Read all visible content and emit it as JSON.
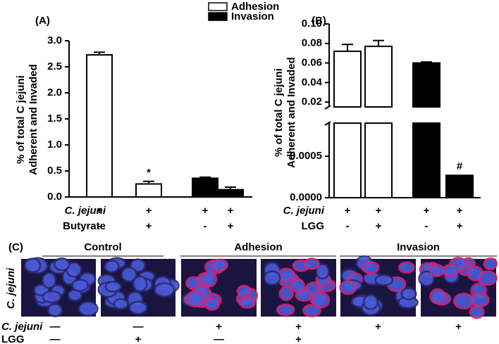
{
  "chart_data": [
    {
      "type": "bar",
      "panel_label": "(A)",
      "ylabel": [
        "% of total C jejuni",
        "Adherent and Invaded"
      ],
      "series": [
        {
          "name": "Adhesion",
          "color": "#ffffff",
          "values": [
            2.73,
            0.25,
            null,
            null
          ],
          "errors": [
            0.05,
            0.05,
            null,
            null
          ]
        },
        {
          "name": "Invasion",
          "color": "#000000",
          "values": [
            null,
            null,
            0.36,
            0.14
          ],
          "errors": [
            null,
            null,
            0.02,
            0.05
          ]
        }
      ],
      "ylim": [
        0,
        3
      ],
      "yticks": [
        {
          "value": 0,
          "label": "0.0"
        },
        0.5,
        {
          "value": 1,
          "label": "1.0"
        },
        1.5,
        {
          "value": 2,
          "label": "2.0"
        },
        2.5,
        {
          "value": 3,
          "label": "3.0"
        }
      ],
      "annotations": [
        {
          "text": "*",
          "series": 0,
          "index": 1
        }
      ],
      "treatments": [
        {
          "label": "C. jejuni",
          "marks": [
            "+",
            "+",
            "+",
            "+"
          ]
        },
        {
          "label": "Butyrate",
          "marks": [
            "-",
            "+",
            "-",
            "+"
          ]
        }
      ]
    },
    {
      "type": "broken_bar",
      "panel_label": "(B)",
      "ylabel": [
        "% of total C jejuni",
        "Adherent and Invaded"
      ],
      "series": [
        {
          "color": "#ffffff",
          "values": [
            0.072,
            0.077,
            null,
            null
          ],
          "errors": [
            0.007,
            0.006,
            null,
            null
          ]
        },
        {
          "color": "#000000",
          "values": [
            null,
            null,
            0.06,
            0.00027
          ],
          "errors": [
            null,
            null,
            0.001,
            0
          ]
        }
      ],
      "segments": [
        {
          "ylim": [
            0,
            0.0009
          ],
          "yticks": [
            {
              "value": 0,
              "label": "0.0000"
            },
            0.0005
          ]
        },
        {
          "ylim": [
            0.015,
            0.1
          ],
          "yticks": [
            0.02,
            0.04,
            0.06,
            0.08,
            {
              "value": 0.1,
              "label": "0.10"
            }
          ]
        }
      ],
      "annotations": [
        {
          "text": "#",
          "series": 1,
          "index": 3
        }
      ],
      "treatments": [
        {
          "label": "C. jejuni",
          "marks": [
            "+",
            "+",
            "+",
            "+"
          ]
        },
        {
          "label": "LGG",
          "marks": [
            "-",
            "+",
            "-",
            "+"
          ]
        }
      ]
    }
  ],
  "panel_c": {
    "panel_label": "(C)",
    "groups": [
      "Control",
      "Adhesion",
      "Invasion"
    ],
    "row_label": "C. jejuni",
    "treatments": [
      {
        "label": "C. jejuni",
        "marks": [
          "—",
          "—",
          "+",
          "+",
          "+",
          "+"
        ]
      },
      {
        "label": "LGG",
        "marks": [
          "—",
          "+",
          "—",
          "+",
          null,
          null
        ]
      }
    ]
  }
}
